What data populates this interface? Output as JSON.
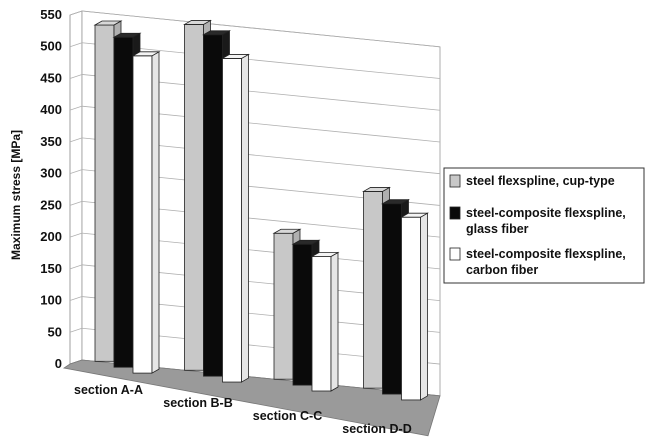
{
  "chart_data": {
    "type": "bar",
    "style": "3d-clustered-column",
    "ylabel": "Maximum stress [MPa]",
    "xlabel": "",
    "ylim": [
      0,
      550
    ],
    "yticks": [
      0,
      50,
      100,
      150,
      200,
      250,
      300,
      350,
      400,
      450,
      500,
      550
    ],
    "grid": true,
    "legend_position": "right",
    "categories": [
      "section A-A",
      "section B-B",
      "section C-C",
      "section D-D"
    ],
    "series": [
      {
        "name_lines": [
          "steel flexspline, cup-type"
        ],
        "color": "#c8c8c8",
        "values": [
          530,
          545,
          230,
          310
        ]
      },
      {
        "name_lines": [
          "steel-composite flexspline,",
          "glass fiber"
        ],
        "color": "#0a0a0a",
        "values": [
          520,
          538,
          222,
          300
        ]
      },
      {
        "name_lines": [
          "steel-composite flexspline,",
          "carbon fiber"
        ],
        "color": "#ffffff",
        "values": [
          500,
          510,
          212,
          288
        ]
      }
    ],
    "colors": {
      "wall": "#ffffff",
      "floor": "#9a9a9a",
      "gridline": "#b0b0b0"
    }
  }
}
